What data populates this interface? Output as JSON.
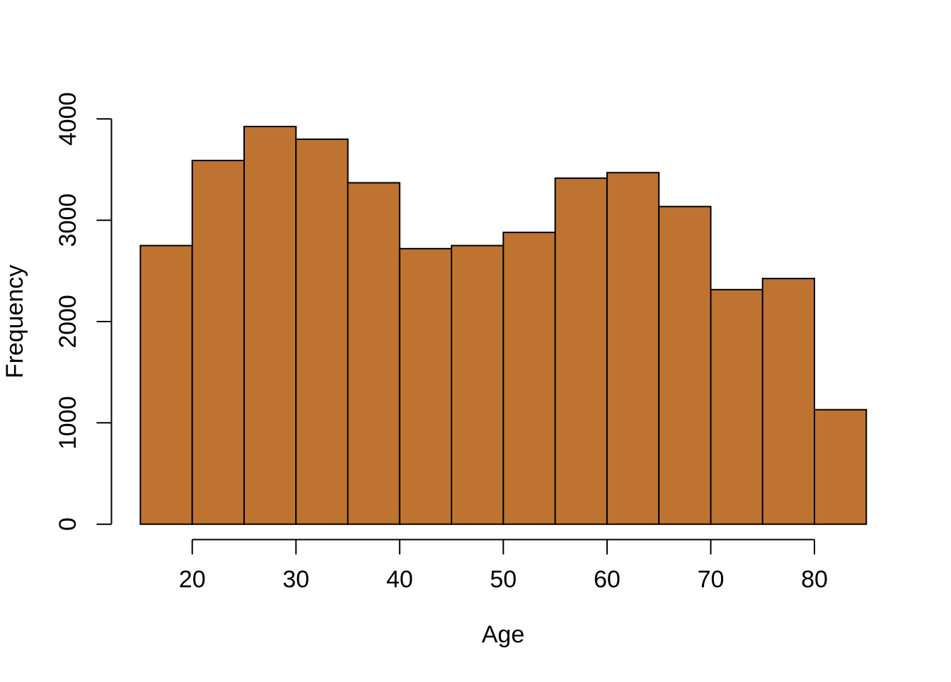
{
  "figure": {
    "background": "#FFFFFF"
  },
  "chart_data": {
    "type": "bar",
    "subtype": "histogram",
    "title": "",
    "xlabel": "Age",
    "ylabel": "Frequency",
    "bin_edges": [
      15,
      20,
      25,
      30,
      35,
      40,
      45,
      50,
      55,
      60,
      65,
      70,
      75,
      80,
      85
    ],
    "categories": [
      "15-20",
      "20-25",
      "25-30",
      "30-35",
      "35-40",
      "40-45",
      "45-50",
      "50-55",
      "55-60",
      "60-65",
      "65-70",
      "70-75",
      "75-80",
      "80-85"
    ],
    "values": [
      2750,
      3590,
      3925,
      3800,
      3370,
      2720,
      2750,
      2880,
      3415,
      3470,
      3135,
      2315,
      2425,
      1130
    ],
    "x_ticks": [
      20,
      30,
      40,
      50,
      60,
      70,
      80
    ],
    "x_tick_labels": [
      "20",
      "30",
      "40",
      "50",
      "60",
      "70",
      "80"
    ],
    "y_ticks": [
      0,
      1000,
      2000,
      3000,
      4000
    ],
    "y_tick_labels": [
      "0",
      "1000",
      "2000",
      "3000",
      "4000"
    ],
    "xlim": [
      15,
      85
    ],
    "ylim": [
      0,
      4000
    ],
    "grid": false,
    "legend": false,
    "bar_fill": "#BF7330",
    "bar_stroke": "#000000",
    "axis_color": "#000000"
  }
}
